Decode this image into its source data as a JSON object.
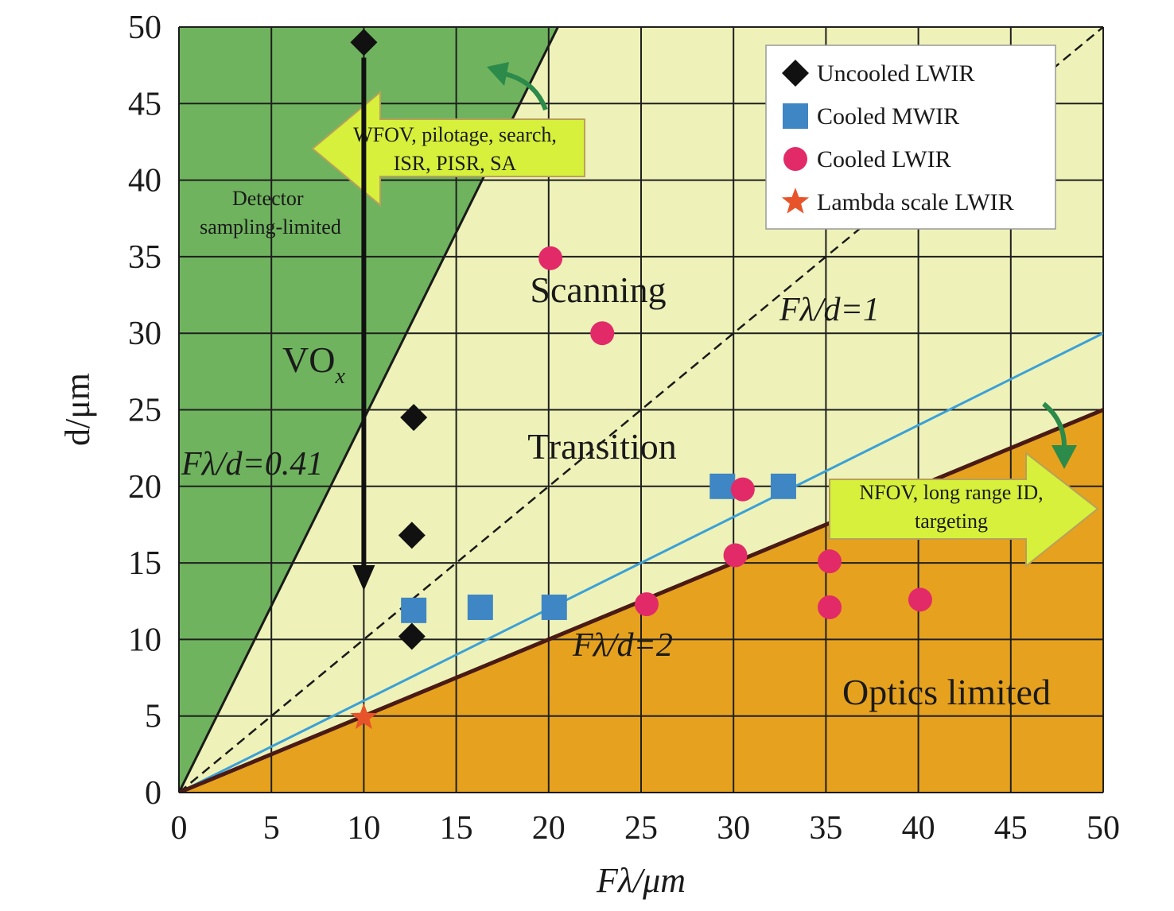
{
  "chart_data": {
    "type": "scatter",
    "xlabel": "Fλ/μm",
    "ylabel": "d/μm",
    "xlim": [
      0,
      50
    ],
    "ylim": [
      0,
      50
    ],
    "x_ticks": [
      0,
      5,
      10,
      15,
      20,
      25,
      30,
      35,
      40,
      45,
      50
    ],
    "y_ticks": [
      0,
      5,
      10,
      15,
      20,
      25,
      30,
      35,
      40,
      45,
      50
    ],
    "grid": true,
    "legend_position": "top-right",
    "colors": {
      "detector_region": "#6fb35e",
      "middle_region": "#eef2b8",
      "optics_region": "#e6a21e",
      "grid": "#1f1f1f",
      "uncooled_lwir": "#111111",
      "cooled_mwir": "#3f86c4",
      "cooled_lwir": "#e22a69",
      "lambda_scale": "#e8542a",
      "blue_line": "#3aa0d8",
      "arrow_fill": "#d6f03c",
      "curve_arrow": "#2c8a4a"
    },
    "series": [
      {
        "name": "Uncooled LWIR",
        "marker": "diamond",
        "points": [
          [
            10,
            49
          ],
          [
            12.7,
            24.5
          ],
          [
            12.6,
            16.8
          ],
          [
            12.6,
            10.2
          ]
        ]
      },
      {
        "name": "Cooled MWIR",
        "marker": "square",
        "points": [
          [
            12.7,
            11.9
          ],
          [
            16.3,
            12.1
          ],
          [
            20.3,
            12.1
          ],
          [
            29.4,
            20
          ],
          [
            32.7,
            20
          ]
        ]
      },
      {
        "name": "Cooled LWIR",
        "marker": "circle",
        "points": [
          [
            20.1,
            34.9
          ],
          [
            22.9,
            30
          ],
          [
            25.3,
            12.3
          ],
          [
            30.5,
            19.8
          ],
          [
            30.1,
            15.5
          ],
          [
            35.2,
            15.1
          ],
          [
            35.2,
            12.1
          ],
          [
            40.1,
            12.6
          ]
        ]
      },
      {
        "name": "Lambda scale LWIR",
        "marker": "star",
        "points": [
          [
            10,
            4.9
          ]
        ]
      }
    ],
    "reference_lines": [
      {
        "label": "Fλ/d=0.41",
        "slope": 2.439,
        "style": "solid"
      },
      {
        "label": "Fλ/d=1",
        "slope": 1,
        "style": "dashed"
      },
      {
        "label": "",
        "slope": 0.6,
        "style": "solid-blue"
      },
      {
        "label": "Fλ/d=2",
        "slope": 0.5,
        "style": "solid-thick"
      }
    ],
    "region_labels": [
      "Detector sampling-limited",
      "Scanning",
      "Transition",
      "Optics limited"
    ],
    "detector_note_lines": [
      "Detector",
      "sampling-limited"
    ],
    "vox_main": "VO",
    "vox_sub": "x",
    "annotations": {
      "wfov_lines": [
        "WFOV, pilotage, search,",
        "ISR, PISR, SA"
      ],
      "nfov_lines": [
        "NFOV, long range ID,",
        "targeting"
      ]
    },
    "vox_arrow": {
      "x": 10,
      "y_from": 48,
      "y_to": 13.5
    }
  }
}
